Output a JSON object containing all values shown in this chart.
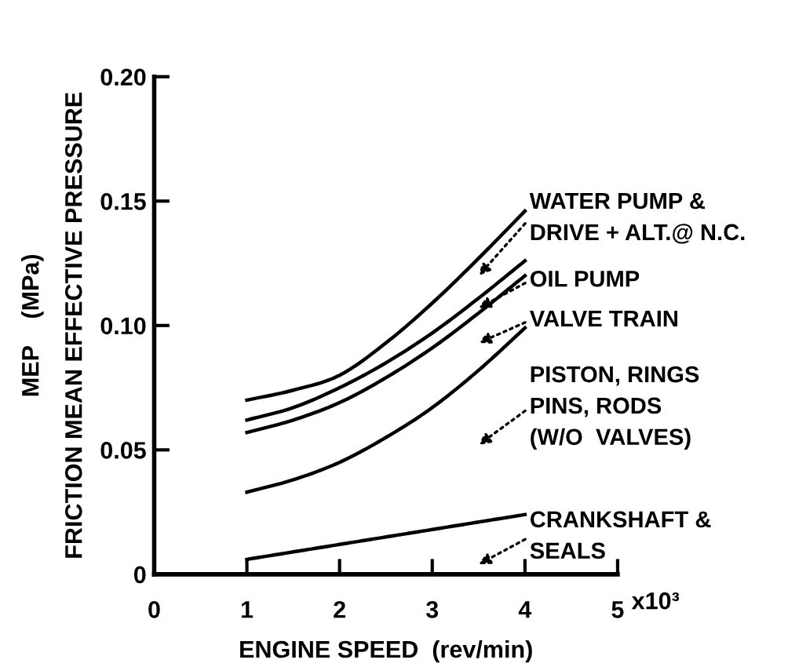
{
  "chart_data": {
    "type": "line",
    "xlabel": "ENGINE SPEED  (rev/min)",
    "ylabel": "MEP    (MPa)\nFRICTION MEAN EFFECTIVE PRESSURE",
    "x": [
      1,
      1.5,
      2,
      2.5,
      3,
      3.5,
      4
    ],
    "series": [
      {
        "color": "#000000",
        "values": [
          0.07,
          0.074,
          0.08,
          0.093,
          0.109,
          0.127,
          0.146
        ]
      },
      {
        "color": "#000000",
        "values": [
          0.062,
          0.067,
          0.075,
          0.085,
          0.097,
          0.111,
          0.126
        ]
      },
      {
        "color": "#000000",
        "values": [
          0.057,
          0.062,
          0.069,
          0.079,
          0.091,
          0.105,
          0.12
        ]
      },
      {
        "color": "#000000",
        "values": [
          0.033,
          0.038,
          0.045,
          0.055,
          0.067,
          0.082,
          0.099
        ]
      },
      {
        "color": "#000000",
        "values": [
          0.006,
          0.009,
          0.012,
          0.015,
          0.018,
          0.021,
          0.024
        ]
      }
    ],
    "annotations": [
      "WATER PUMP &\nDRIVE + ALT.@ N.C.",
      "OIL PUMP",
      "VALVE TRAIN",
      "PISTON, RINGS\nPINS, RODS\n(W/O  VALVES)",
      "CRANKSHAFT &\nSEALS",
      "x10³"
    ],
    "xlim": [
      0,
      5
    ],
    "ylim": [
      0,
      0.2
    ],
    "xticks": [
      0,
      1,
      2,
      3,
      4,
      5
    ],
    "yticks": [
      0,
      {
        "value": 0.05,
        "label": "0.05"
      },
      {
        "value": 0.1,
        "label": "0.10"
      },
      {
        "value": 0.15,
        "label": "0.15"
      },
      {
        "value": 0.2,
        "label": "0.20"
      }
    ],
    "grid": false,
    "legend": false,
    "marker": "none",
    "line_style": "solid"
  }
}
